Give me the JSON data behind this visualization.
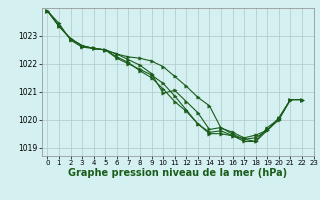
{
  "title": "Graphe pression niveau de la mer (hPa)",
  "background_color": "#d4f0f0",
  "grid_color": "#b0c8c8",
  "line_color": "#1a5c1a",
  "xlim": [
    -0.5,
    23
  ],
  "ylim": [
    1018.7,
    1024.0
  ],
  "yticks": [
    1019,
    1020,
    1021,
    1022,
    1023
  ],
  "xticks": [
    0,
    1,
    2,
    3,
    4,
    5,
    6,
    7,
    8,
    9,
    10,
    11,
    12,
    13,
    14,
    15,
    16,
    17,
    18,
    19,
    20,
    21,
    22,
    23
  ],
  "series": [
    [
      1023.9,
      1023.45,
      1022.85,
      1022.6,
      1022.55,
      1022.5,
      1022.35,
      1022.25,
      1022.2,
      1022.1,
      1021.9,
      1021.55,
      1021.2,
      1020.8,
      1020.5,
      1019.7,
      1019.55,
      1019.35,
      1019.45,
      1019.62,
      1020.05,
      1020.72,
      1020.72,
      null
    ],
    [
      1023.9,
      1023.35,
      1022.9,
      1022.65,
      1022.55,
      1022.5,
      1022.2,
      1022.0,
      1021.8,
      1021.6,
      1021.3,
      1020.85,
      1020.35,
      1019.85,
      1019.5,
      1019.5,
      1019.42,
      1019.3,
      1019.35,
      1019.62,
      1020.0,
      1020.72,
      1020.72,
      null
    ],
    [
      1023.9,
      1023.35,
      1022.9,
      1022.65,
      1022.55,
      1022.5,
      1022.25,
      1022.05,
      1021.75,
      1021.5,
      1021.1,
      1020.65,
      1020.3,
      1019.85,
      1019.55,
      1019.6,
      1019.43,
      1019.22,
      1019.22,
      1019.72,
      1020.02,
      1020.72,
      1020.72,
      null
    ],
    [
      1023.9,
      1023.35,
      1022.9,
      1022.65,
      1022.55,
      1022.5,
      1022.35,
      1022.15,
      1021.95,
      1021.65,
      1020.95,
      1021.05,
      1020.65,
      1020.25,
      1019.65,
      1019.72,
      1019.48,
      1019.3,
      1019.22,
      1019.62,
      1020.07,
      1020.72,
      1020.72,
      null
    ]
  ],
  "title_fontsize": 7,
  "marker_size": 2.5,
  "linewidth": 0.8
}
